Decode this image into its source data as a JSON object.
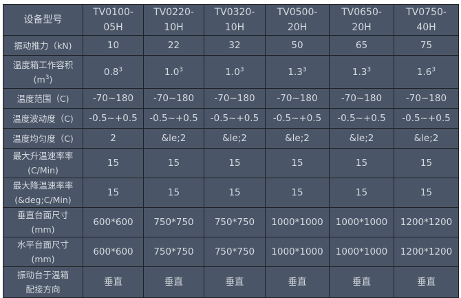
{
  "header": {
    "label": "设备型号",
    "models": [
      "TV0100-05H",
      "TV0220-10H",
      "TV0320-10H",
      "TV0500-20H",
      "TV0650-20H",
      "TV0750-40H"
    ],
    "models_lines": [
      [
        "TV0100-",
        "05H"
      ],
      [
        "TV0220-",
        "10H"
      ],
      [
        "TV0320-",
        "10H"
      ],
      [
        "TV0500-",
        "20H"
      ],
      [
        "TV0650-",
        "20H"
      ],
      [
        "TV0750-",
        "40H"
      ]
    ]
  },
  "rows": [
    {
      "label": [
        "振动推力（kN)"
      ],
      "values": [
        "10",
        "22",
        "32",
        "50",
        "65",
        "75"
      ]
    },
    {
      "label": [
        "温度箱工作容积",
        "(m",
        "3",
        ")"
      ],
      "values": [
        "0.8",
        "1.0",
        "1.0",
        "1.3",
        "1.3",
        "1.6"
      ],
      "sup": "3"
    },
    {
      "label": [
        "温度范围（C)"
      ],
      "values": [
        "-70~180",
        "-70~180",
        "-70~180",
        "-70~180",
        "-70~180",
        "-70~180"
      ]
    },
    {
      "label": [
        "温度波动度（C)"
      ],
      "values": [
        "-0.5~+0.5",
        "-0.5~+0.5",
        "-0.5~+0.5",
        "-0.5~+0.5",
        "-0.5~+0.5",
        "-0.5~+0.5"
      ]
    },
    {
      "label": [
        "温度均匀度（C)"
      ],
      "values": [
        "2",
        "&le;2",
        "&le;2",
        "&le;2",
        "&le;2",
        "&le;2"
      ]
    },
    {
      "label": [
        "最大升温速率率",
        "(C/Min)"
      ],
      "values": [
        "15",
        "15",
        "15",
        "15",
        "15",
        "15"
      ]
    },
    {
      "label": [
        "最大降温速率率",
        "(&deg;C/Min)"
      ],
      "values": [
        "15",
        "15",
        "15",
        "15",
        "15",
        "15"
      ]
    },
    {
      "label": [
        "垂直台面尺寸",
        "(mm)"
      ],
      "values": [
        "600*600",
        "750*750",
        "750*750",
        "1000*1000",
        "1000*1000",
        "1200*1200"
      ]
    },
    {
      "label": [
        "水平台面尺寸",
        "(mm)"
      ],
      "values": [
        "600*600",
        "750*750",
        "750*750",
        "1000*1000",
        "1000*1000",
        "1200*1200"
      ]
    },
    {
      "label": [
        "振动台于温箱",
        "配接方向"
      ],
      "values": [
        "垂直",
        "垂直",
        "垂直",
        "垂直",
        "垂直",
        "垂直"
      ]
    }
  ],
  "colors": {
    "background": "#4a5567",
    "text": "#d4d9df",
    "border": "#1f2328"
  }
}
